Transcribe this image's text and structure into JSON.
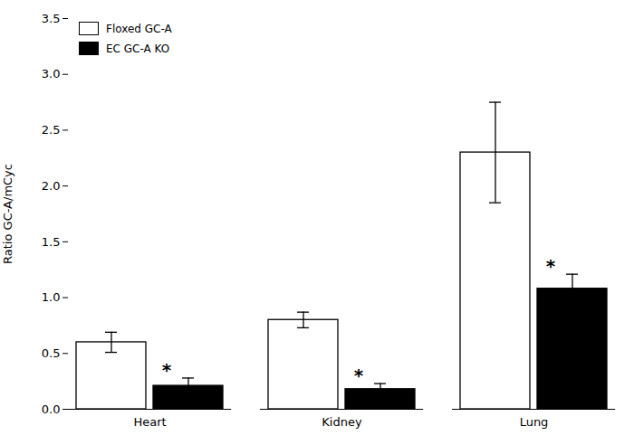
{
  "chart_data": {
    "type": "bar",
    "categories": [
      "Heart",
      "Kidney",
      "Lung"
    ],
    "series": [
      {
        "name": "Floxed GC-A",
        "color": "#ffffff",
        "values": [
          0.6,
          0.8,
          2.3
        ],
        "errors": [
          0.09,
          0.07,
          0.45
        ]
      },
      {
        "name": "EC GC-A KO",
        "color": "#000000",
        "values": [
          0.21,
          0.18,
          1.08
        ],
        "errors": [
          0.07,
          0.05,
          0.13
        ],
        "annotations": [
          "*",
          "*",
          "*"
        ]
      }
    ],
    "ylabel": "Ratio GC-A/mCyc",
    "ylim": [
      0,
      3.5
    ],
    "yticks": [
      {
        "value": 0.0,
        "label": "0.0"
      },
      0.5,
      {
        "value": 1.0,
        "label": "1.0"
      },
      1.5,
      {
        "value": 2.0,
        "label": "2.0"
      },
      2.5,
      {
        "value": 3.0,
        "label": "3.0"
      },
      3.5
    ],
    "legend": "upper left",
    "grid": false
  }
}
